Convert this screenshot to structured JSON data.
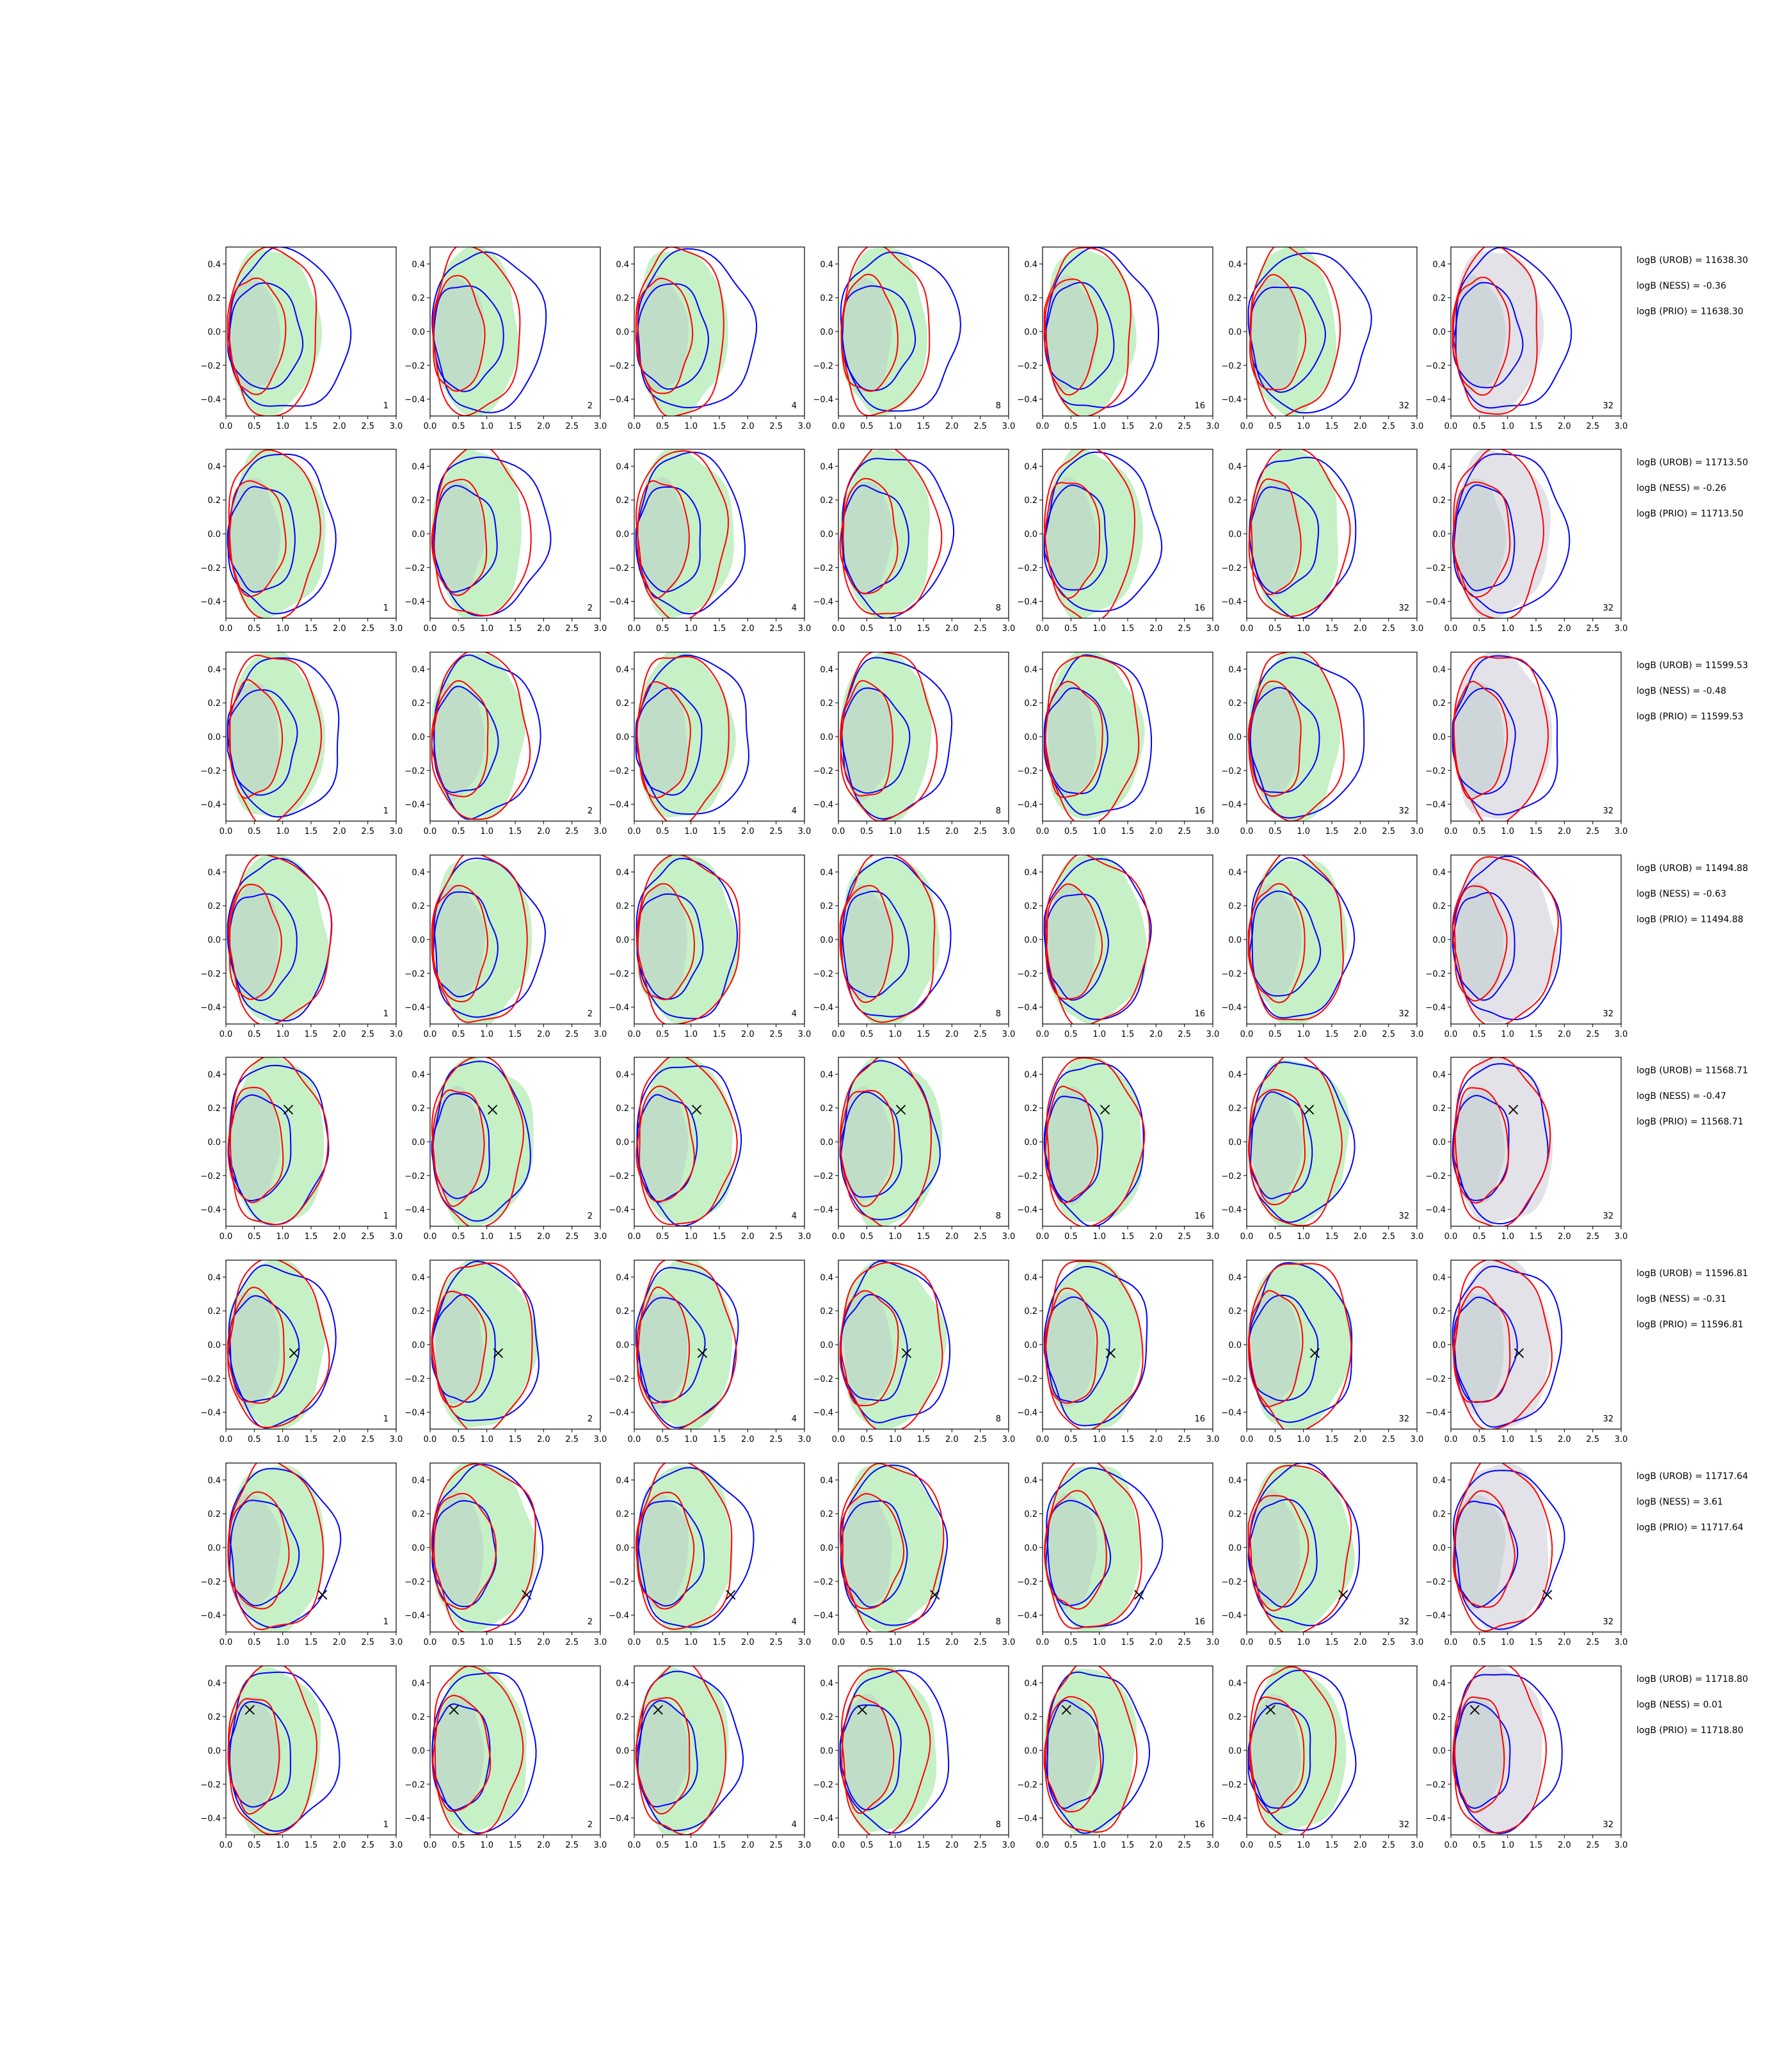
{
  "chart_data": {
    "type": "contour",
    "layout": "grid 8 rows x 7 columns",
    "xlim": [
      0.0,
      3.0
    ],
    "ylim": [
      -0.5,
      0.5
    ],
    "x_ticks": [
      "0.0",
      "0.5",
      "1.0",
      "1.5",
      "2.0",
      "2.5",
      "3.0"
    ],
    "y_ticks": [
      "0.4",
      "0.2",
      "0.0",
      "−0.2",
      "−0.4"
    ],
    "y_tick_values": [
      0.4,
      0.2,
      0.0,
      -0.2,
      -0.4
    ],
    "x_tick_values": [
      0,
      0.5,
      1,
      1.5,
      2,
      2.5,
      3
    ],
    "column_corner_labels": [
      "1",
      "2",
      "4",
      "8",
      "16",
      "32",
      "32"
    ],
    "colors": {
      "fill_green": "#c6f0c6",
      "fill_gray": "#e2e2e8",
      "blue": "#0000ff",
      "red": "#ff0000",
      "marker": "#000000"
    },
    "rows": [
      {
        "uron": "logB (UROB) = 11638.30",
        "ness": "logB (NESS) = -0.36",
        "prio": "logB (PRIO) = 11638.30",
        "marker": null,
        "blue_inner": 1.3,
        "blue_outer": 2.1,
        "red_inner": 1.0,
        "red_outer": 1.6,
        "green": 1.6
      },
      {
        "uron": "logB (UROB) = 11713.50",
        "ness": "logB (NESS) = -0.26",
        "prio": "logB (PRIO) = 11713.50",
        "marker": null,
        "blue_inner": 1.2,
        "blue_outer": 2.0,
        "red_inner": 1.0,
        "red_outer": 1.7,
        "green": 1.7
      },
      {
        "uron": "logB (UROB) = 11599.53",
        "ness": "logB (NESS) = -0.48",
        "prio": "logB (PRIO) = 11599.53",
        "marker": null,
        "blue_inner": 1.2,
        "blue_outer": 2.0,
        "red_inner": 1.0,
        "red_outer": 1.7,
        "green": 1.7
      },
      {
        "uron": "logB (UROB) = 11494.88",
        "ness": "logB (NESS) = -0.63",
        "prio": "logB (PRIO) = 11494.88",
        "marker": null,
        "blue_inner": 1.2,
        "blue_outer": 1.9,
        "red_inner": 1.0,
        "red_outer": 1.8,
        "green": 1.8
      },
      {
        "uron": "logB (UROB) = 11568.71",
        "ness": "logB (NESS) = -0.47",
        "prio": "logB (PRIO) = 11568.71",
        "marker": [
          1.1,
          0.19
        ],
        "blue_inner": 1.1,
        "blue_outer": 1.8,
        "red_inner": 1.0,
        "red_outer": 1.7,
        "green": 1.8
      },
      {
        "uron": "logB (UROB) = 11596.81",
        "ness": "logB (NESS) = -0.31",
        "prio": "logB (PRIO) = 11596.81",
        "marker": [
          1.2,
          -0.05
        ],
        "blue_inner": 1.2,
        "blue_outer": 1.9,
        "red_inner": 1.0,
        "red_outer": 1.8,
        "green": 1.8
      },
      {
        "uron": "logB (UROB) = 11717.64",
        "ness": "logB (NESS) = 3.61",
        "prio": "logB (PRIO) = 11717.64",
        "marker": [
          1.7,
          -0.28
        ],
        "blue_inner": 1.2,
        "blue_outer": 2.0,
        "red_inner": 1.1,
        "red_outer": 1.8,
        "green": 1.8
      },
      {
        "uron": "logB (UROB) = 11718.80",
        "ness": "logB (NESS) = 0.01",
        "prio": "logB (PRIO) = 11718.80",
        "marker": [
          0.42,
          0.24
        ],
        "blue_inner": 1.1,
        "blue_outer": 1.9,
        "red_inner": 1.0,
        "red_outer": 1.6,
        "green": 1.7
      }
    ]
  }
}
